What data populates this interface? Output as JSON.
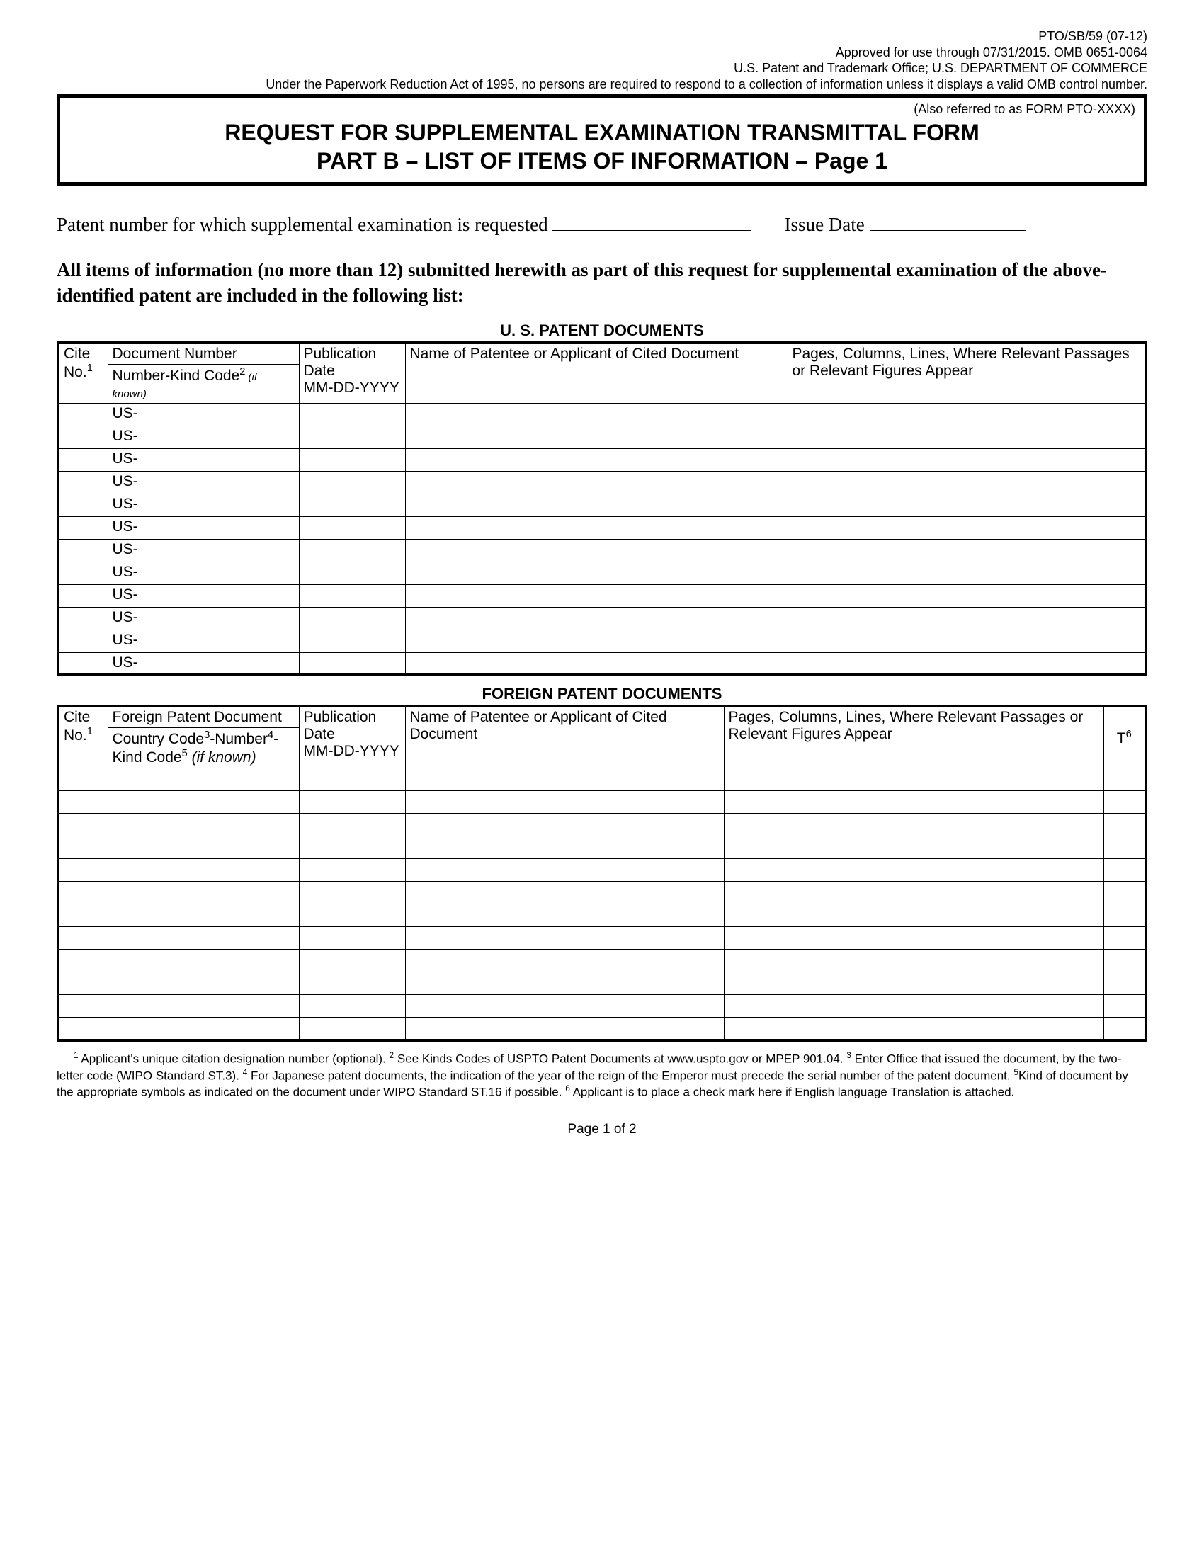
{
  "meta": {
    "line1": "PTO/SB/59 (07-12)",
    "line2": "Approved for use through 07/31/2015. OMB 0651-0064",
    "line3": "U.S. Patent and Trademark Office; U.S. DEPARTMENT OF COMMERCE",
    "line4": "Under the Paperwork Reduction Act of 1995, no persons are required to respond to a collection of information unless it displays a valid OMB control number."
  },
  "title": {
    "ref": "(Also referred to as FORM PTO-XXXX)",
    "line1": "REQUEST FOR SUPPLEMENTAL EXAMINATION TRANSMITTAL FORM",
    "line2": "PART B – LIST OF ITEMS OF INFORMATION – Page 1"
  },
  "fields": {
    "patent_label": "Patent number for which supplemental examination is requested",
    "issue_label": "Issue Date"
  },
  "intro": "All items of information (no more than 12) submitted herewith as part of this request for supplemental examination of the above-identified patent are included in the following list:",
  "us_section": {
    "title": "U. S. PATENT DOCUMENTS",
    "col1a": "Cite",
    "col1b": "No.",
    "col2a": "Document Number",
    "col2b": "Number-Kind Code",
    "col2c": "(if known)",
    "col3a": "Publication Date",
    "col3b": "MM-DD-YYYY",
    "col4": "Name of Patentee or Applicant of Cited Document",
    "col5": "Pages, Columns, Lines, Where Relevant Passages or Relevant Figures Appear",
    "row_prefix": "US-",
    "row_count": 12
  },
  "foreign_section": {
    "title": "FOREIGN PATENT DOCUMENTS",
    "col1a": "Cite",
    "col1b": "No.",
    "col2a": "Foreign Patent Document",
    "col2b_1": "Country Code",
    "col2b_2": "-Number",
    "col2b_3": "-Kind Code",
    "col2b_4": " (if known)",
    "col3a": "Publication Date",
    "col3b": "MM-DD-YYYY",
    "col4": "Name of Patentee or Applicant of Cited Document",
    "col5": "Pages, Columns, Lines, Where Relevant Passages or Relevant Figures Appear",
    "col6": "T",
    "row_count": 12
  },
  "footnotes": {
    "f1": " Applicant's unique citation designation number (optional). ",
    "f2": " See Kinds Codes of USPTO Patent Documents at ",
    "f2link": "www.uspto.gov ",
    "f2b": "or MPEP 901.04. ",
    "f3": " Enter Office that issued the document, by the two-letter code (WIPO Standard ST.3). ",
    "f4": " For Japanese patent documents, the indication of the year of the reign of the Emperor must precede the serial number of the patent document. ",
    "f5": "Kind of document by the appropriate symbols as indicated on the document under WIPO Standard ST.16 if possible. ",
    "f6": " Applicant is to place a check mark here if English language Translation is attached."
  },
  "page_num": "Page 1 of 2",
  "layout": {
    "us_col_widths": [
      "70px",
      "270px",
      "150px",
      "540px",
      "auto"
    ],
    "foreign_col_widths": [
      "70px",
      "270px",
      "150px",
      "450px",
      "auto",
      "60px"
    ]
  }
}
